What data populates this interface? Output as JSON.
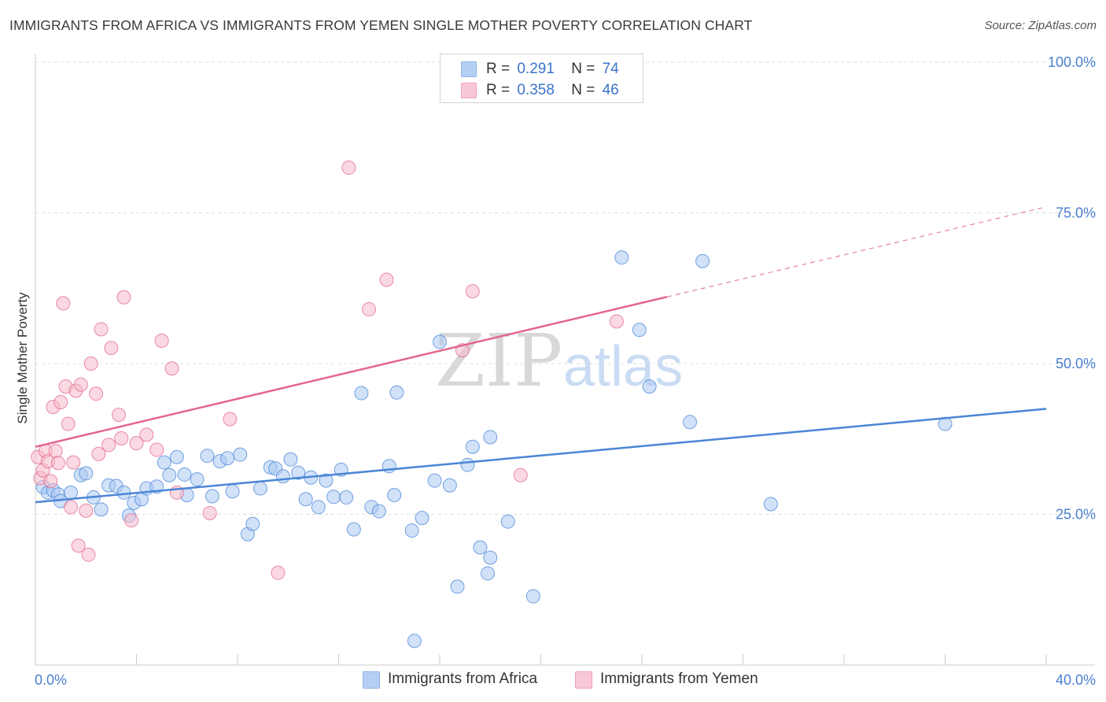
{
  "title": "IMMIGRANTS FROM AFRICA VS IMMIGRANTS FROM YEMEN SINGLE MOTHER POVERTY CORRELATION CHART",
  "source": "Source: ZipAtlas.com",
  "watermark": {
    "zip": "ZIP",
    "atlas": "atlas"
  },
  "legend": {
    "rows": [
      {
        "r_label": "R =",
        "r_value": "0.291",
        "n_label": "N =",
        "n_value": "74",
        "color": "#a9c8f2"
      },
      {
        "r_label": "R =",
        "r_value": "0.358",
        "n_label": "N =",
        "n_value": "46",
        "color": "#f6b9cb"
      }
    ]
  },
  "bottom_legend": [
    {
      "label": "Immigrants from Africa",
      "color": "#a9c8f2"
    },
    {
      "label": "Immigrants from Yemen",
      "color": "#f6b9cb"
    }
  ],
  "chart_data": {
    "type": "scatter",
    "title": "IMMIGRANTS FROM AFRICA VS IMMIGRANTS FROM YEMEN SINGLE MOTHER POVERTY CORRELATION CHART",
    "xlabel": "",
    "ylabel": "Single Mother Poverty",
    "xlim": [
      0,
      40
    ],
    "ylim": [
      0,
      100
    ],
    "x_tick_labels": [
      "0.0%",
      "40.0%"
    ],
    "y_ticks": [
      25,
      50,
      75,
      100
    ],
    "y_tick_labels": [
      "25.0%",
      "50.0%",
      "75.0%",
      "100.0%"
    ],
    "series": [
      {
        "name": "Immigrants from Africa",
        "color": "#4a86d6",
        "fill": "#a9c8f2",
        "trend": {
          "x0": 0,
          "y0": 27.0,
          "x1": 40,
          "y1": 42.5,
          "solid_to": 40
        },
        "points": [
          [
            0.3,
            29.5
          ],
          [
            0.5,
            28.6
          ],
          [
            0.7,
            29.0
          ],
          [
            0.9,
            28.3
          ],
          [
            1.0,
            27.2
          ],
          [
            1.4,
            28.6
          ],
          [
            1.8,
            31.5
          ],
          [
            2.0,
            31.8
          ],
          [
            2.3,
            27.8
          ],
          [
            2.6,
            25.8
          ],
          [
            2.9,
            29.8
          ],
          [
            3.2,
            29.7
          ],
          [
            3.5,
            28.6
          ],
          [
            3.7,
            24.8
          ],
          [
            3.9,
            26.9
          ],
          [
            4.2,
            27.5
          ],
          [
            4.4,
            29.3
          ],
          [
            4.8,
            29.6
          ],
          [
            5.1,
            33.6
          ],
          [
            5.3,
            31.5
          ],
          [
            5.6,
            34.5
          ],
          [
            5.9,
            31.6
          ],
          [
            6.0,
            28.2
          ],
          [
            6.4,
            30.8
          ],
          [
            6.8,
            34.7
          ],
          [
            7.0,
            28.0
          ],
          [
            7.3,
            33.8
          ],
          [
            7.6,
            34.3
          ],
          [
            7.8,
            28.8
          ],
          [
            8.1,
            34.9
          ],
          [
            8.4,
            21.7
          ],
          [
            8.6,
            23.4
          ],
          [
            8.9,
            29.3
          ],
          [
            9.3,
            32.8
          ],
          [
            9.5,
            32.6
          ],
          [
            9.8,
            31.3
          ],
          [
            10.1,
            34.1
          ],
          [
            10.4,
            31.9
          ],
          [
            10.7,
            27.5
          ],
          [
            10.9,
            31.1
          ],
          [
            11.2,
            26.2
          ],
          [
            11.5,
            30.6
          ],
          [
            11.8,
            27.9
          ],
          [
            12.1,
            32.4
          ],
          [
            12.3,
            27.8
          ],
          [
            12.6,
            22.5
          ],
          [
            12.9,
            45.1
          ],
          [
            13.3,
            26.2
          ],
          [
            13.6,
            25.5
          ],
          [
            14.0,
            33.0
          ],
          [
            14.2,
            28.2
          ],
          [
            14.3,
            45.2
          ],
          [
            14.9,
            22.3
          ],
          [
            15.0,
            4.0
          ],
          [
            15.3,
            24.4
          ],
          [
            15.8,
            30.6
          ],
          [
            16.0,
            53.6
          ],
          [
            16.4,
            29.8
          ],
          [
            16.7,
            13.0
          ],
          [
            17.1,
            33.2
          ],
          [
            17.3,
            36.2
          ],
          [
            17.6,
            19.5
          ],
          [
            17.9,
            15.2
          ],
          [
            18.0,
            17.8
          ],
          [
            18.0,
            37.8
          ],
          [
            18.7,
            23.8
          ],
          [
            19.7,
            11.4
          ],
          [
            23.2,
            67.6
          ],
          [
            23.9,
            55.6
          ],
          [
            24.3,
            46.2
          ],
          [
            25.9,
            40.3
          ],
          [
            26.4,
            67.0
          ],
          [
            29.1,
            26.7
          ],
          [
            36.0,
            40.0
          ]
        ]
      },
      {
        "name": "Immigrants from Yemen",
        "color": "#e3648c",
        "fill": "#f6b9cb",
        "trend": {
          "x0": 0,
          "y0": 36.2,
          "x1": 40,
          "y1": 76.0,
          "solid_to": 25
        },
        "points": [
          [
            0.1,
            34.5
          ],
          [
            0.2,
            31.0
          ],
          [
            0.3,
            32.3
          ],
          [
            0.4,
            35.5
          ],
          [
            0.5,
            33.8
          ],
          [
            0.6,
            30.5
          ],
          [
            0.7,
            42.8
          ],
          [
            0.8,
            35.5
          ],
          [
            0.9,
            33.5
          ],
          [
            1.0,
            43.6
          ],
          [
            1.1,
            60.0
          ],
          [
            1.2,
            46.2
          ],
          [
            1.3,
            40.0
          ],
          [
            1.4,
            26.2
          ],
          [
            1.5,
            33.6
          ],
          [
            1.6,
            45.5
          ],
          [
            1.7,
            19.8
          ],
          [
            1.8,
            46.5
          ],
          [
            2.0,
            25.6
          ],
          [
            2.1,
            18.3
          ],
          [
            2.2,
            50.0
          ],
          [
            2.4,
            45.0
          ],
          [
            2.5,
            35.0
          ],
          [
            2.6,
            55.7
          ],
          [
            2.9,
            36.5
          ],
          [
            3.0,
            52.6
          ],
          [
            3.3,
            41.5
          ],
          [
            3.4,
            37.6
          ],
          [
            3.5,
            61.0
          ],
          [
            3.8,
            24.0
          ],
          [
            4.0,
            36.8
          ],
          [
            4.4,
            38.2
          ],
          [
            4.8,
            35.7
          ],
          [
            5.0,
            53.8
          ],
          [
            5.4,
            49.2
          ],
          [
            5.6,
            28.6
          ],
          [
            6.9,
            25.2
          ],
          [
            7.7,
            40.8
          ],
          [
            9.6,
            15.3
          ],
          [
            12.4,
            82.5
          ],
          [
            13.2,
            59.0
          ],
          [
            13.9,
            63.9
          ],
          [
            16.9,
            52.2
          ],
          [
            17.3,
            62.0
          ],
          [
            19.2,
            31.5
          ],
          [
            23.0,
            57.0
          ]
        ]
      }
    ]
  }
}
